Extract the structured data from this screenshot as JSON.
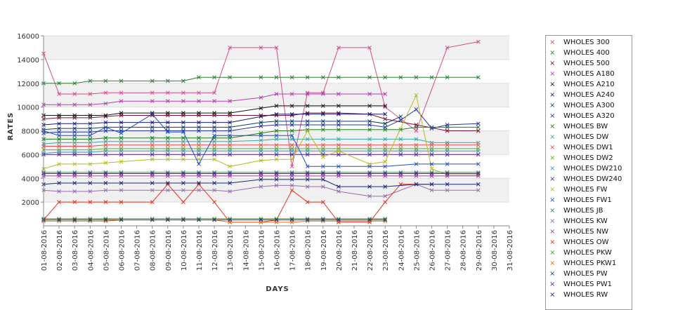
{
  "chart_data": {
    "type": "line",
    "xlabel": "DAYS",
    "ylabel": "RATES",
    "ylim": [
      0,
      16000
    ],
    "yticks": [
      2000,
      4000,
      6000,
      8000,
      10000,
      12000,
      14000,
      16000
    ],
    "grid": true,
    "legend_position": "right",
    "categories": [
      "01-08-2016",
      "02-08-2016",
      "03-08-2016",
      "04-08-2016",
      "05-08-2016",
      "06-08-2016",
      "07-08-2016",
      "08-08-2016",
      "09-08-2016",
      "10-08-2016",
      "11-08-2016",
      "12-08-2016",
      "13-08-2016",
      "14-08-2016",
      "15-08-2016",
      "16-08-2016",
      "17-08-2016",
      "18-08-2016",
      "19-08-2016",
      "20-08-2016",
      "21-08-2016",
      "22-08-2016",
      "23-08-2016",
      "24-08-2016",
      "25-08-2016",
      "26-08-2016",
      "27-08-2016",
      "28-08-2016",
      "29-08-2016",
      "30-08-2016",
      "31-08-2016"
    ],
    "series": [
      {
        "name": "WHOLES 300",
        "color": "#d04a8c",
        "values": [
          14500,
          11100,
          11100,
          11100,
          11200,
          11200,
          null,
          11200,
          11200,
          11200,
          11200,
          11200,
          15000,
          null,
          15000,
          15000,
          5000,
          11200,
          11200,
          15000,
          null,
          15000,
          10000,
          null,
          8000,
          null,
          15000,
          null,
          15500,
          null,
          null
        ]
      },
      {
        "name": "WHOLES 400",
        "color": "#2e7d32",
        "values": [
          12000,
          12000,
          12000,
          12200,
          12200,
          12200,
          null,
          12200,
          12200,
          12200,
          12500,
          12500,
          12500,
          null,
          12500,
          12500,
          12500,
          12500,
          12500,
          12500,
          null,
          12500,
          12500,
          12500,
          12500,
          12500,
          12500,
          null,
          12500,
          null,
          null
        ]
      },
      {
        "name": "WHOLES 500",
        "color": "#7a1030",
        "values": [
          9000,
          9100,
          9100,
          9100,
          9200,
          9300,
          null,
          9300,
          9300,
          9300,
          9300,
          9300,
          9300,
          null,
          9300,
          9300,
          9300,
          9500,
          9500,
          9500,
          null,
          9400,
          9000,
          null,
          8500,
          null,
          8000,
          null,
          8000,
          null,
          null
        ]
      },
      {
        "name": "WHOLES A180",
        "color": "#b040b0",
        "values": [
          10200,
          10200,
          10200,
          10200,
          10300,
          10500,
          null,
          10500,
          10500,
          10500,
          10500,
          10500,
          10500,
          null,
          10800,
          11100,
          11100,
          11100,
          11100,
          11100,
          null,
          11100,
          11100,
          null,
          null,
          null,
          null,
          null,
          null,
          null,
          null
        ]
      },
      {
        "name": "WHOLES A210",
        "color": "#111111",
        "values": [
          9300,
          9300,
          9300,
          9300,
          9300,
          9500,
          null,
          9500,
          9500,
          9500,
          9500,
          9500,
          9500,
          null,
          9900,
          10100,
          10100,
          10100,
          10100,
          10100,
          null,
          10100,
          10100,
          null,
          null,
          null,
          null,
          null,
          null,
          null,
          null
        ]
      },
      {
        "name": "WHOLES A240",
        "color": "#1a1a70",
        "values": [
          8500,
          8600,
          8600,
          8600,
          8700,
          8700,
          null,
          8700,
          8700,
          8700,
          8700,
          8700,
          8700,
          null,
          9200,
          9400,
          9400,
          9400,
          9400,
          9400,
          null,
          9400,
          9400,
          null,
          null,
          null,
          null,
          null,
          null,
          null,
          null
        ]
      },
      {
        "name": "WHOLES A300",
        "color": "#0b3d5c",
        "values": [
          8100,
          8200,
          8200,
          8200,
          8300,
          8300,
          null,
          8300,
          8300,
          8300,
          8300,
          8300,
          8300,
          null,
          8700,
          8800,
          8800,
          8800,
          8800,
          8800,
          null,
          8800,
          8600,
          9200,
          null,
          null,
          null,
          null,
          null,
          null,
          null
        ]
      },
      {
        "name": "WHOLES A320",
        "color": "#2233aa",
        "values": [
          7800,
          7900,
          7900,
          7900,
          8000,
          8000,
          null,
          8000,
          8000,
          8000,
          8000,
          8000,
          8000,
          null,
          8400,
          8500,
          8500,
          8500,
          8500,
          8500,
          null,
          8500,
          8300,
          8900,
          9800,
          8200,
          8500,
          null,
          8600,
          null,
          null
        ]
      },
      {
        "name": "WHOLES BW",
        "color": "#1e7a1e",
        "values": [
          7300,
          7300,
          7300,
          7300,
          7400,
          7400,
          null,
          7400,
          7400,
          7400,
          7400,
          7400,
          7400,
          null,
          7800,
          8000,
          8000,
          8100,
          8100,
          8100,
          null,
          8100,
          8100,
          8100,
          8300,
          8300,
          8300,
          null,
          8300,
          null,
          null
        ]
      },
      {
        "name": "WHOLES DW",
        "color": "#3aa6a6",
        "values": [
          6900,
          7000,
          7000,
          7000,
          7100,
          7100,
          null,
          7100,
          7100,
          7100,
          7100,
          7100,
          7100,
          null,
          7200,
          7300,
          7300,
          7300,
          7300,
          7300,
          null,
          7300,
          7300,
          7300,
          7300,
          7000,
          7000,
          null,
          7000,
          null,
          null
        ]
      },
      {
        "name": "WHOLES DW1",
        "color": "#e05050",
        "values": [
          6700,
          6700,
          6700,
          6700,
          6800,
          6800,
          null,
          6800,
          6800,
          6800,
          6800,
          6800,
          6800,
          null,
          6800,
          6800,
          6800,
          6800,
          6800,
          6800,
          null,
          6800,
          6800,
          6800,
          6800,
          6800,
          6800,
          null,
          6800,
          null,
          null
        ]
      },
      {
        "name": "WHOLES DW2",
        "color": "#6bab2a",
        "values": [
          6400,
          6400,
          6400,
          6400,
          6500,
          6500,
          null,
          6500,
          6500,
          6500,
          6500,
          6500,
          6500,
          null,
          6500,
          6500,
          6500,
          6500,
          6500,
          6500,
          null,
          6500,
          6500,
          6500,
          6500,
          6500,
          6500,
          null,
          6500,
          null,
          null
        ]
      },
      {
        "name": "WHOLES DW210",
        "color": "#2a9ad0",
        "values": [
          6100,
          6200,
          6200,
          6200,
          6300,
          6300,
          null,
          6300,
          6300,
          6300,
          6300,
          6300,
          6300,
          null,
          6300,
          6300,
          6300,
          6300,
          6300,
          6300,
          null,
          6300,
          6300,
          6300,
          6300,
          6300,
          6300,
          null,
          6300,
          null,
          null
        ]
      },
      {
        "name": "WHOLES DW240",
        "color": "#5a2a8a",
        "values": [
          6000,
          6000,
          6000,
          6000,
          6000,
          6000,
          null,
          6000,
          6000,
          6000,
          6000,
          6000,
          6000,
          null,
          6000,
          6000,
          6000,
          6000,
          6000,
          6000,
          null,
          6000,
          6000,
          6000,
          6000,
          6000,
          6000,
          null,
          6000,
          null,
          null
        ]
      },
      {
        "name": "WHOLES FW",
        "color": "#b8b820",
        "values": [
          4800,
          5200,
          5200,
          5200,
          5300,
          5400,
          null,
          5600,
          5600,
          5600,
          5600,
          5600,
          5000,
          null,
          5500,
          5600,
          5600,
          8000,
          5800,
          6300,
          null,
          5200,
          5400,
          null,
          11000,
          4800,
          4300,
          null,
          4300,
          null,
          null
        ]
      },
      {
        "name": "WHOLES FW1",
        "color": "#2050c0",
        "values": [
          8000,
          7600,
          7600,
          7600,
          8300,
          7800,
          null,
          9400,
          7900,
          7900,
          5200,
          7600,
          7600,
          null,
          7600,
          7600,
          7600,
          5000,
          5000,
          5000,
          null,
          5000,
          5000,
          null,
          5200,
          5200,
          5200,
          null,
          5200,
          null,
          null
        ]
      },
      {
        "name": "WHOLES JB",
        "color": "#2a8a6a",
        "values": [
          4500,
          4500,
          4500,
          4500,
          4500,
          4500,
          null,
          4500,
          4500,
          4500,
          4500,
          4500,
          4500,
          null,
          4500,
          4500,
          4500,
          4500,
          4500,
          4500,
          null,
          4500,
          4500,
          4500,
          4500,
          4500,
          4500,
          null,
          4500,
          null,
          null
        ]
      },
      {
        "name": "WHOLES KW",
        "color": "#9a6ab0",
        "values": [
          3000,
          2900,
          2900,
          2900,
          3000,
          3000,
          null,
          3000,
          3000,
          3000,
          3000,
          3000,
          2900,
          null,
          3300,
          3400,
          3400,
          3300,
          3300,
          2900,
          null,
          2500,
          2500,
          null,
          3500,
          3000,
          3000,
          null,
          3000,
          null,
          null
        ]
      },
      {
        "name": "WHOLES NW",
        "color": "#a03aa0",
        "values": [
          4200,
          4200,
          4200,
          4200,
          4200,
          4200,
          null,
          4200,
          4200,
          4200,
          4200,
          4200,
          4200,
          null,
          4200,
          4200,
          4200,
          4200,
          4200,
          4200,
          null,
          4200,
          4200,
          4200,
          4200,
          4200,
          4200,
          null,
          4200,
          null,
          null
        ]
      },
      {
        "name": "WHOLES OW",
        "color": "#e03020",
        "values": [
          500,
          2000,
          2000,
          2000,
          2000,
          2000,
          null,
          2000,
          3500,
          2000,
          3500,
          2000,
          300,
          null,
          300,
          500,
          3000,
          2000,
          2000,
          300,
          null,
          300,
          2000,
          3500,
          3500,
          3500,
          null,
          null,
          null,
          null,
          null
        ]
      },
      {
        "name": "WHOLES PKW",
        "color": "#3a9a3a",
        "values": [
          600,
          600,
          600,
          600,
          600,
          600,
          null,
          600,
          600,
          600,
          600,
          600,
          600,
          null,
          600,
          600,
          600,
          600,
          600,
          600,
          null,
          600,
          600,
          null,
          null,
          null,
          null,
          null,
          null,
          null,
          null
        ]
      },
      {
        "name": "WHOLES PKW1",
        "color": "#e07020",
        "values": [
          400,
          400,
          400,
          400,
          400,
          500,
          null,
          500,
          500,
          500,
          500,
          500,
          300,
          null,
          300,
          300,
          300,
          400,
          400,
          400,
          null,
          400,
          400,
          null,
          null,
          null,
          null,
          null,
          null,
          null,
          null
        ]
      },
      {
        "name": "WHOLES PW",
        "color": "#1a3a8a",
        "values": [
          500,
          500,
          500,
          500,
          500,
          500,
          null,
          500,
          500,
          500,
          500,
          500,
          500,
          null,
          500,
          500,
          500,
          500,
          500,
          500,
          null,
          500,
          500,
          null,
          null,
          null,
          null,
          null,
          null,
          null,
          null
        ]
      },
      {
        "name": "WHOLES PW1",
        "color": "#5a1aa0",
        "values": [
          4400,
          4400,
          4400,
          4400,
          4400,
          4400,
          null,
          4400,
          4400,
          4400,
          4400,
          4400,
          4400,
          null,
          4400,
          4400,
          4400,
          4400,
          4400,
          4400,
          null,
          4400,
          4400,
          4400,
          4400,
          4400,
          4400,
          null,
          4400,
          null,
          null
        ]
      },
      {
        "name": "WHOLES RW",
        "color": "#1a2a7a",
        "values": [
          3500,
          3600,
          3600,
          3600,
          3600,
          3600,
          null,
          3600,
          3600,
          3600,
          3600,
          3600,
          3600,
          null,
          3900,
          3900,
          3900,
          3900,
          3900,
          3300,
          null,
          3300,
          3300,
          null,
          3500,
          3500,
          3500,
          null,
          3500,
          null,
          null
        ]
      }
    ]
  }
}
